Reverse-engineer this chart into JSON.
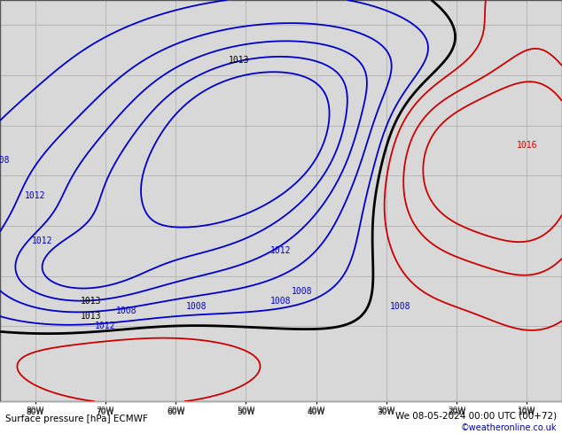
{
  "title_left": "Surface pressure [hPa] ECMWF",
  "title_right": "We 08-05-2024 00:00 UTC (00+72)",
  "credit": "©weatheronline.co.uk",
  "bg_ocean": "#d8d8d8",
  "bg_land": "#c8e8b0",
  "grid_color": "#aaaaaa",
  "border_color": "#555555",
  "lon_min": -85,
  "lon_max": -5,
  "lat_min": -15,
  "lat_max": 65,
  "grid_lons": [
    -80,
    -70,
    -60,
    -50,
    -40,
    -30,
    -20,
    -10
  ],
  "grid_lats": [
    0,
    10,
    20,
    30,
    40,
    50,
    60
  ],
  "coastline_color": "#888888",
  "coastline_lw": 0.5,
  "blue_color": "#0000cc",
  "black_color": "#000000",
  "red_color": "#cc0000",
  "blue_lw": 1.3,
  "black_lw": 2.0,
  "red_lw": 1.3,
  "label_fontsize": 7
}
